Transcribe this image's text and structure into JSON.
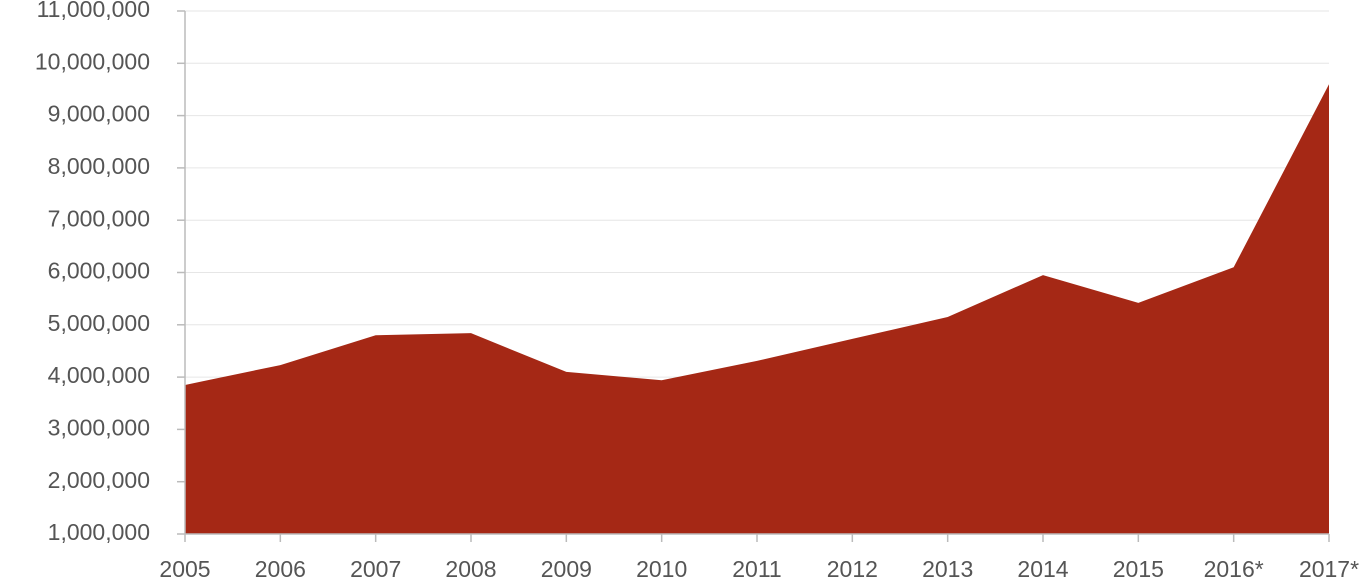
{
  "chart_data": {
    "type": "area",
    "categories": [
      "2005",
      "2006",
      "2007",
      "2008",
      "2009",
      "2010",
      "2011",
      "2012",
      "2013",
      "2014",
      "2015",
      "2016*",
      "2017*"
    ],
    "series": [
      {
        "color": "#a52815",
        "values": [
          3850000,
          4230000,
          4800000,
          4840000,
          4100000,
          3940000,
          4310000,
          4730000,
          5150000,
          5950000,
          5420000,
          6100000,
          9600000
        ]
      }
    ],
    "ylim": [
      1000000,
      11000000
    ],
    "yticks": [
      {
        "value": 1000000,
        "label": "1,000,000"
      },
      {
        "value": 2000000,
        "label": "2,000,000"
      },
      {
        "value": 3000000,
        "label": "3,000,000"
      },
      {
        "value": 4000000,
        "label": "4,000,000"
      },
      {
        "value": 5000000,
        "label": "5,000,000"
      },
      {
        "value": 6000000,
        "label": "6,000,000"
      },
      {
        "value": 7000000,
        "label": "7,000,000"
      },
      {
        "value": 8000000,
        "label": "8,000,000"
      },
      {
        "value": 9000000,
        "label": "9,000,000"
      },
      {
        "value": 10000000,
        "label": "10,000,000"
      },
      {
        "value": 11000000,
        "label": "11,000,000"
      }
    ],
    "grid": true
  }
}
